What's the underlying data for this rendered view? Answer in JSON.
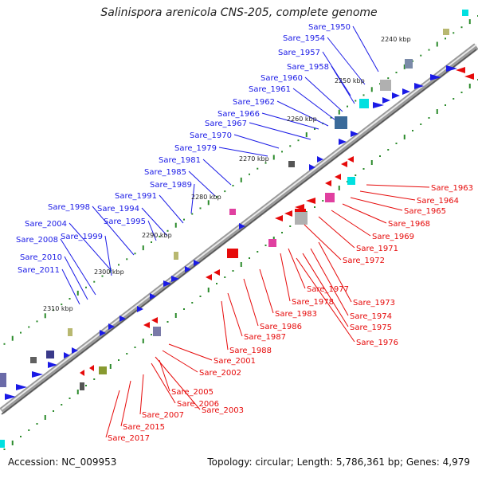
{
  "title": "Salinispora arenicola CNS-205, complete genome",
  "accession": "Accession: NC_009953",
  "topology": "Topology: circular; Length: 5,786,361 bp; Genes: 4,979",
  "colors": {
    "forward": "#1a1ae6",
    "reverse": "#e60a0a",
    "backbone": "#888888",
    "gc_dot": "#2a8a2a"
  },
  "ticks": [
    "2240 kbp",
    "2250 kbp",
    "2260 kbp",
    "2270 kbp",
    "2280 kbp",
    "2290 kbp",
    "2300 kbp",
    "2310 kbp"
  ],
  "forward_labels": [
    "Sare_1950",
    "Sare_1954",
    "Sare_1957",
    "Sare_1958",
    "Sare_1960",
    "Sare_1961",
    "Sare_1962",
    "Sare_1966",
    "Sare_1967",
    "Sare_1970",
    "Sare_1979",
    "Sare_1981",
    "Sare_1985",
    "Sare_1989",
    "Sare_1991",
    "Sare_1994",
    "Sare_1995",
    "Sare_1998",
    "Sare_2004",
    "Sare_1999",
    "Sare_2008",
    "Sare_2010",
    "Sare_2011"
  ],
  "reverse_labels": [
    "Sare_1963",
    "Sare_1964",
    "Sare_1965",
    "Sare_1968",
    "Sare_1969",
    "Sare_1971",
    "Sare_1972",
    "Sare_1973",
    "Sare_1974",
    "Sare_1975",
    "Sare_1976",
    "Sare_1977",
    "Sare_1978",
    "Sare_1983",
    "Sare_1986",
    "Sare_1987",
    "Sare_1988",
    "Sare_2001",
    "Sare_2002",
    "Sare_2003",
    "Sare_2005",
    "Sare_2006",
    "Sare_2007",
    "Sare_2015",
    "Sare_2017"
  ]
}
